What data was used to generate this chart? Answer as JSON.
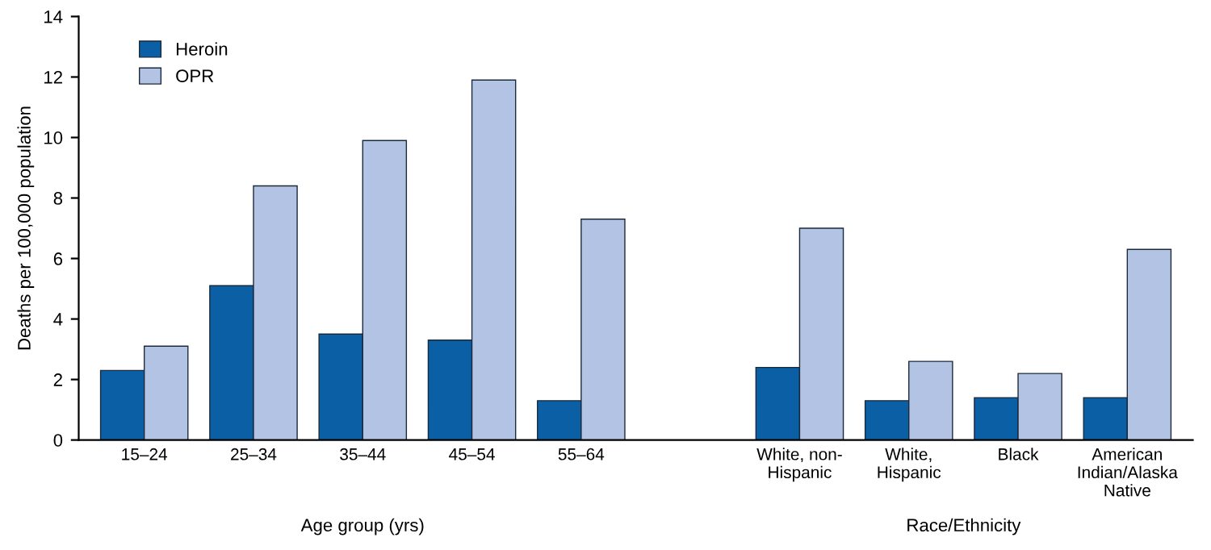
{
  "chart_data": {
    "type": "bar",
    "ylabel": "Deaths per 100,000 population",
    "categories": [
      "15–24",
      "25–34",
      "35–44",
      "45–54",
      "55–64",
      null,
      "White, non-\nHispanic",
      "White,\nHispanic",
      "Black",
      "American\nIndian/Alaska\nNative"
    ],
    "series": [
      {
        "name": "Heroin",
        "color": "#0b5fa5",
        "values": [
          2.3,
          5.1,
          3.5,
          3.3,
          1.3,
          null,
          2.4,
          1.3,
          1.4,
          1.4
        ]
      },
      {
        "name": "OPR",
        "color": "#b3c3e4",
        "values": [
          3.1,
          8.4,
          9.9,
          11.9,
          7.3,
          null,
          7.0,
          2.6,
          2.2,
          6.3
        ]
      }
    ],
    "ylim": [
      0,
      14
    ],
    "yticks": [
      0,
      2,
      4,
      6,
      8,
      10,
      12,
      14
    ],
    "grid": false,
    "legend": "top left",
    "annotations": [
      "Age group (yrs)",
      "Race/Ethnicity"
    ]
  }
}
